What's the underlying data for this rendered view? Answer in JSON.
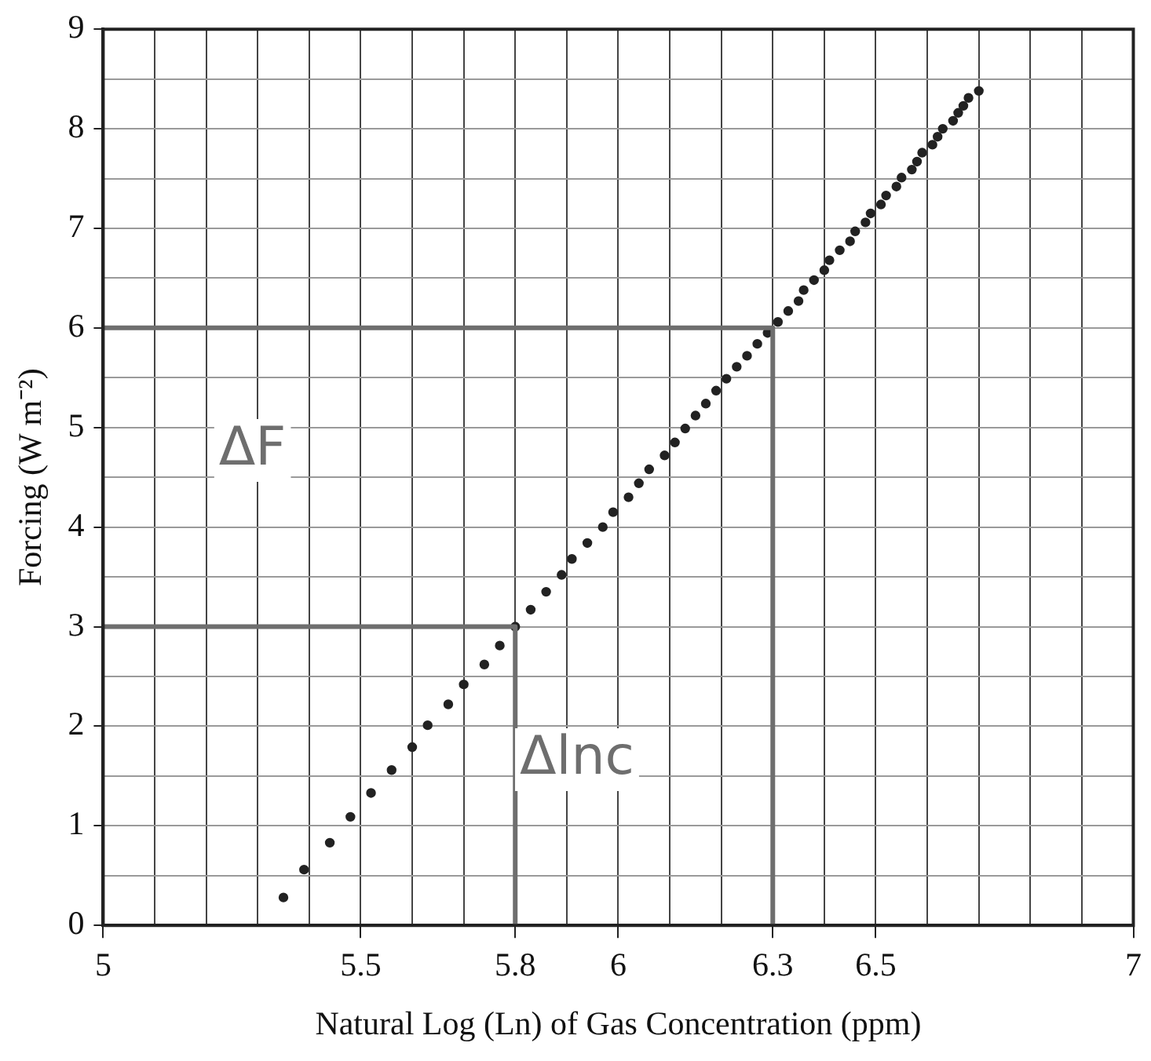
{
  "chart_data": {
    "type": "scatter",
    "xlabel": "Natural Log (Ln) of Gas Concentration (ppm)",
    "ylabel": "Forcing (W m⁻²)",
    "xlim": [
      5,
      7
    ],
    "ylim": [
      0,
      9
    ],
    "xticks": [
      5,
      {
        "value": 5.1,
        "label": null
      },
      {
        "value": 5.2,
        "label": null
      },
      {
        "value": 5.3,
        "label": null
      },
      {
        "value": 5.4,
        "label": null
      },
      5.5,
      {
        "value": 5.6,
        "label": null
      },
      {
        "value": 5.7,
        "label": null
      },
      5.8,
      {
        "value": 5.9,
        "label": null
      },
      6,
      {
        "value": 6.1,
        "label": null
      },
      {
        "value": 6.2,
        "label": null
      },
      6.3,
      {
        "value": 6.4,
        "label": null
      },
      6.5,
      {
        "value": 6.6,
        "label": null
      },
      {
        "value": 6.7,
        "label": null
      },
      {
        "value": 6.8,
        "label": null
      },
      {
        "value": 6.9,
        "label": null
      },
      7
    ],
    "yticks": [
      0,
      {
        "value": 0.5,
        "label": null
      },
      1,
      {
        "value": 1.5,
        "label": null
      },
      2,
      {
        "value": 2.5,
        "label": null
      },
      3,
      {
        "value": 3.5,
        "label": null
      },
      4,
      {
        "value": 4.5,
        "label": null
      },
      5,
      {
        "value": 5.5,
        "label": null
      },
      6,
      {
        "value": 6.5,
        "label": null
      },
      7,
      {
        "value": 7.5,
        "label": null
      },
      8,
      {
        "value": 8.5,
        "label": null
      },
      9
    ],
    "grid": true,
    "series": [
      {
        "marker": "circle",
        "color": "#222222",
        "x": [
          5.35,
          5.39,
          5.44,
          5.48,
          5.52,
          5.56,
          5.6,
          5.63,
          5.67,
          5.7,
          5.74,
          5.77,
          5.8,
          5.83,
          5.86,
          5.89,
          5.91,
          5.94,
          5.97,
          5.99,
          6.02,
          6.04,
          6.06,
          6.09,
          6.11,
          6.13,
          6.15,
          6.17,
          6.19,
          6.21,
          6.23,
          6.25,
          6.27,
          6.29,
          6.31,
          6.33,
          6.35,
          6.36,
          6.38,
          6.4,
          6.41,
          6.43,
          6.45,
          6.46,
          6.48,
          6.49,
          6.51,
          6.52,
          6.54,
          6.55,
          6.57,
          6.58,
          6.59,
          6.61,
          6.62,
          6.63,
          6.65,
          6.66,
          6.67,
          6.68,
          6.7
        ],
        "values": [
          0.28,
          0.56,
          0.83,
          1.09,
          1.33,
          1.56,
          1.79,
          2.01,
          2.22,
          2.42,
          2.62,
          2.81,
          3.0,
          3.17,
          3.35,
          3.52,
          3.68,
          3.84,
          4.0,
          4.15,
          4.3,
          4.44,
          4.58,
          4.72,
          4.85,
          4.99,
          5.12,
          5.24,
          5.37,
          5.49,
          5.61,
          5.72,
          5.84,
          5.95,
          6.06,
          6.17,
          6.27,
          6.38,
          6.48,
          6.58,
          6.68,
          6.78,
          6.87,
          6.97,
          7.06,
          7.15,
          7.24,
          7.33,
          7.42,
          7.51,
          7.59,
          7.67,
          7.76,
          7.84,
          7.92,
          8.0,
          8.08,
          8.16,
          8.23,
          8.31,
          8.38
        ]
      },
      {
        "type": "line",
        "marker": "none",
        "color": "#6e6e6e",
        "x": [
          5,
          6.3,
          6.3
        ],
        "values": [
          6,
          6,
          0
        ]
      },
      {
        "type": "line",
        "marker": "none",
        "color": "#6e6e6e",
        "x": [
          5,
          5.8,
          5.8
        ],
        "values": [
          3,
          3,
          0
        ]
      }
    ],
    "annotations": [
      "ΔF",
      "Δlnc"
    ]
  }
}
